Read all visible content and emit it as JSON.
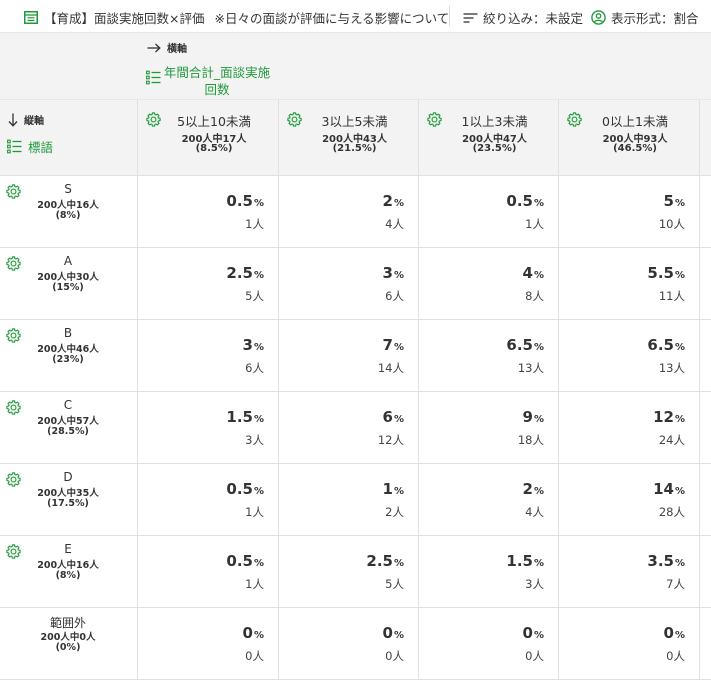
{
  "toolbar": {
    "title": "【育成】面談実施回数×評価",
    "note": "※日々の面談が評価に与える影響について",
    "filter_label": "絞り込み：未設定",
    "format_label": "表示形式：割合",
    "icons": [
      "table-icon",
      "filter-icon",
      "user-circle-icon"
    ]
  },
  "horizontal_axis": {
    "label": "横軸",
    "field": "年間合計_面談実施回数",
    "field_line1": "年間合計_面談実施",
    "field_line2": "回数"
  },
  "vertical_axis": {
    "label": "縦軸",
    "field": "標語"
  },
  "columns": [
    {
      "label": "5以上10未満",
      "count": "200人中17人",
      "pct": "(8.5%)"
    },
    {
      "label": "3以上5未満",
      "count": "200人中43人",
      "pct": "(21.5%)"
    },
    {
      "label": "1以上3未満",
      "count": "200人中47人",
      "pct": "(23.5%)"
    },
    {
      "label": "0以上1未満",
      "count": "200人中93人",
      "pct": "(46.5%)"
    }
  ],
  "rows": [
    {
      "label": "S",
      "count": "200人中16人",
      "pct": "(8%)",
      "has_gear": true,
      "cells": [
        {
          "v": "0.5",
          "u": "%",
          "n": "1人"
        },
        {
          "v": "2",
          "u": "%",
          "n": "4人"
        },
        {
          "v": "0.5",
          "u": "%",
          "n": "1人"
        },
        {
          "v": "5",
          "u": "%",
          "n": "10人"
        }
      ]
    },
    {
      "label": "A",
      "count": "200人中30人",
      "pct": "(15%)",
      "has_gear": true,
      "cells": [
        {
          "v": "2.5",
          "u": "%",
          "n": "5人"
        },
        {
          "v": "3",
          "u": "%",
          "n": "6人"
        },
        {
          "v": "4",
          "u": "%",
          "n": "8人"
        },
        {
          "v": "5.5",
          "u": "%",
          "n": "11人"
        }
      ]
    },
    {
      "label": "B",
      "count": "200人中46人",
      "pct": "(23%)",
      "has_gear": true,
      "cells": [
        {
          "v": "3",
          "u": "%",
          "n": "6人"
        },
        {
          "v": "7",
          "u": "%",
          "n": "14人"
        },
        {
          "v": "6.5",
          "u": "%",
          "n": "13人"
        },
        {
          "v": "6.5",
          "u": "%",
          "n": "13人"
        }
      ]
    },
    {
      "label": "C",
      "count": "200人中57人",
      "pct": "(28.5%)",
      "has_gear": true,
      "cells": [
        {
          "v": "1.5",
          "u": "%",
          "n": "3人"
        },
        {
          "v": "6",
          "u": "%",
          "n": "12人"
        },
        {
          "v": "9",
          "u": "%",
          "n": "18人"
        },
        {
          "v": "12",
          "u": "%",
          "n": "24人"
        }
      ]
    },
    {
      "label": "D",
      "count": "200人中35人",
      "pct": "(17.5%)",
      "has_gear": true,
      "cells": [
        {
          "v": "0.5",
          "u": "%",
          "n": "1人"
        },
        {
          "v": "1",
          "u": "%",
          "n": "2人"
        },
        {
          "v": "2",
          "u": "%",
          "n": "4人"
        },
        {
          "v": "14",
          "u": "%",
          "n": "28人"
        }
      ]
    },
    {
      "label": "E",
      "count": "200人中16人",
      "pct": "(8%)",
      "has_gear": true,
      "cells": [
        {
          "v": "0.5",
          "u": "%",
          "n": "1人"
        },
        {
          "v": "2.5",
          "u": "%",
          "n": "5人"
        },
        {
          "v": "1.5",
          "u": "%",
          "n": "3人"
        },
        {
          "v": "3.5",
          "u": "%",
          "n": "7人"
        }
      ]
    },
    {
      "label": "範囲外",
      "count": "200人中0人",
      "pct": "(0%)",
      "has_gear": false,
      "cells": [
        {
          "v": "0",
          "u": "%",
          "n": "0人"
        },
        {
          "v": "0",
          "u": "%",
          "n": "0人"
        },
        {
          "v": "0",
          "u": "%",
          "n": "0人"
        },
        {
          "v": "0",
          "u": "%",
          "n": "0人"
        }
      ]
    }
  ],
  "colors": {
    "accent": "#1f9a3a",
    "header_bg": "#f3f3f3",
    "border": "#e0e0e0"
  }
}
